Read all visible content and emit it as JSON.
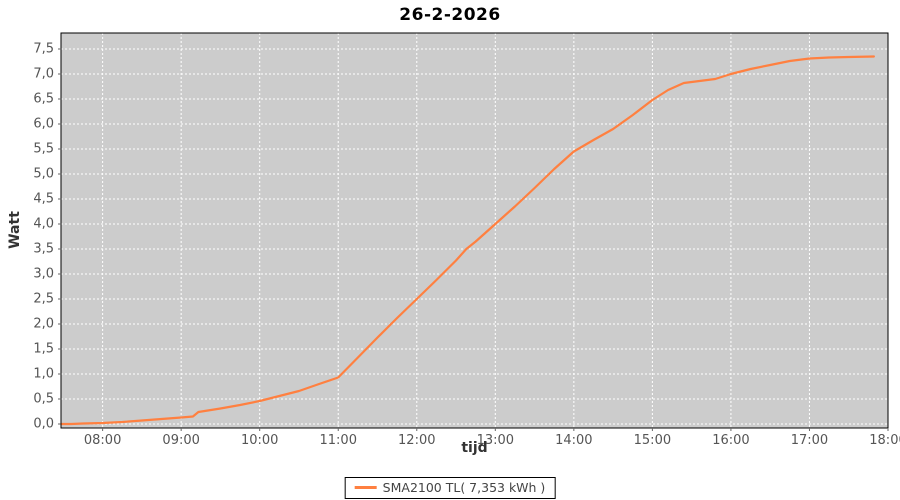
{
  "title": "26-2-2026",
  "colors": {
    "page_bg": "#ffffff",
    "plot_bg": "#cccccc",
    "grid": "#ffffff",
    "plot_border": "#000000",
    "series_line": "#ff8040",
    "tick_label": "#555555",
    "axis_label": "#333333",
    "tick_mark": "#666666"
  },
  "legend": {
    "label": "SMA2100 TL( 7,353 kWh )",
    "swatch_color": "#ff8040"
  },
  "chart_data": {
    "type": "line",
    "title": "26-2-2026",
    "xlabel": "tijd",
    "ylabel": "Watt",
    "legend_position": "bottom-center",
    "grid": "white dashed gridlines on gray plot background",
    "x_ticks": [
      "08:00",
      "09:00",
      "10:00",
      "11:00",
      "12:00",
      "13:00",
      "14:00",
      "15:00",
      "16:00",
      "17:00",
      "18:00"
    ],
    "x_tick_hours": [
      8,
      9,
      10,
      11,
      12,
      13,
      14,
      15,
      16,
      17,
      18
    ],
    "y_ticks": [
      "0,0",
      "0,5",
      "1,0",
      "1,5",
      "2,0",
      "2,5",
      "3,0",
      "3,5",
      "4,0",
      "4,5",
      "5,0",
      "5,5",
      "6,0",
      "6,5",
      "7,0",
      "7,5"
    ],
    "y_tick_values": [
      0,
      0.5,
      1.0,
      1.5,
      2.0,
      2.5,
      3.0,
      3.5,
      4.0,
      4.5,
      5.0,
      5.5,
      6.0,
      6.5,
      7.0,
      7.5
    ],
    "x_range_hours": [
      7.47,
      18.0
    ],
    "y_range": [
      -0.08,
      7.82
    ],
    "series": [
      {
        "name": "SMA2100 TL( 7,353 kWh )",
        "color": "#ff8040",
        "final_total_kwh": "7,353 kWh",
        "points": [
          [
            7.47,
            0.0
          ],
          [
            7.6,
            0.0
          ],
          [
            7.75,
            0.01
          ],
          [
            8.0,
            0.02
          ],
          [
            8.25,
            0.04
          ],
          [
            8.5,
            0.07
          ],
          [
            8.75,
            0.1
          ],
          [
            9.0,
            0.13
          ],
          [
            9.15,
            0.15
          ],
          [
            9.22,
            0.24
          ],
          [
            9.5,
            0.31
          ],
          [
            9.75,
            0.38
          ],
          [
            10.0,
            0.46
          ],
          [
            10.25,
            0.56
          ],
          [
            10.5,
            0.66
          ],
          [
            10.72,
            0.78
          ],
          [
            11.0,
            0.93
          ],
          [
            11.25,
            1.33
          ],
          [
            11.5,
            1.73
          ],
          [
            11.75,
            2.12
          ],
          [
            12.0,
            2.5
          ],
          [
            12.25,
            2.88
          ],
          [
            12.5,
            3.27
          ],
          [
            12.63,
            3.5
          ],
          [
            12.75,
            3.65
          ],
          [
            13.0,
            4.0
          ],
          [
            13.25,
            4.35
          ],
          [
            13.5,
            4.72
          ],
          [
            13.75,
            5.1
          ],
          [
            14.0,
            5.45
          ],
          [
            14.25,
            5.68
          ],
          [
            14.5,
            5.9
          ],
          [
            14.75,
            6.18
          ],
          [
            15.0,
            6.48
          ],
          [
            15.2,
            6.68
          ],
          [
            15.4,
            6.82
          ],
          [
            15.6,
            6.86
          ],
          [
            15.8,
            6.9
          ],
          [
            16.0,
            7.0
          ],
          [
            16.25,
            7.1
          ],
          [
            16.5,
            7.18
          ],
          [
            16.75,
            7.26
          ],
          [
            17.0,
            7.31
          ],
          [
            17.25,
            7.33
          ],
          [
            17.5,
            7.34
          ],
          [
            17.82,
            7.35
          ]
        ]
      }
    ]
  }
}
